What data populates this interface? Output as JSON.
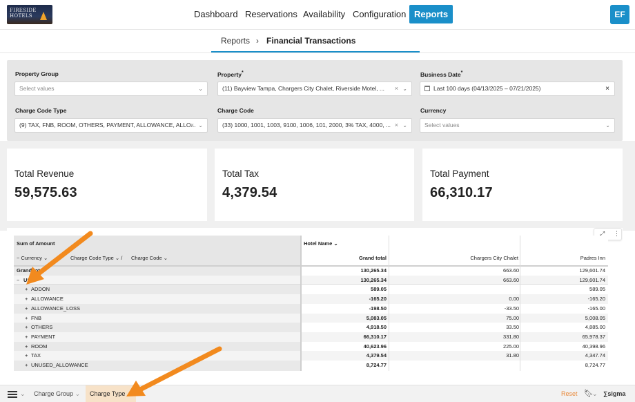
{
  "logo": {
    "text": "FIRESIDE\nHOTELS"
  },
  "nav": {
    "items": [
      "Dashboard",
      "Reservations",
      "Availability",
      "Configuration",
      "Reports"
    ],
    "active": "Reports",
    "avatar": "EF"
  },
  "breadcrumb": {
    "parent": "Reports",
    "separator": "›",
    "current": "Financial Transactions"
  },
  "filters": {
    "property_group": {
      "label": "Property Group",
      "value": "Select values",
      "required": false
    },
    "property": {
      "label": "Property",
      "value": "(11) Bayview Tampa, Chargers City Chalet, Riverside Motel, ...",
      "required_mark": "*"
    },
    "business_date": {
      "label": "Business Date",
      "value": "Last 100 days (04/13/2025 – 07/21/2025)",
      "required_mark": "*"
    },
    "charge_code_type": {
      "label": "Charge Code Type",
      "value": "(9) TAX, FNB, ROOM, OTHERS, PAYMENT, ALLOWANCE, ALLO..."
    },
    "charge_code": {
      "label": "Charge Code",
      "value": "(33) 1000, 1001, 1003, 9100, 1006, 101, 2000, 3% TAX, 4000, ..."
    },
    "currency": {
      "label": "Currency",
      "value": "Select values"
    }
  },
  "kpis": [
    {
      "label": "Total Revenue",
      "value": "59,575.63"
    },
    {
      "label": "Total Tax",
      "value": "4,379.54"
    },
    {
      "label": "Total Payment",
      "value": "66,310.17"
    }
  ],
  "pivot": {
    "title": "Sum of Amount",
    "column_header": "Hotel Name",
    "row_headers": [
      "Currency",
      "Charge Code Type",
      "Charge Code"
    ],
    "columns": [
      "Grand total",
      "Chargers City Chalet",
      "Padres Inn"
    ],
    "rows": [
      {
        "label": "Grand total",
        "level": 0,
        "prefix": "",
        "values": [
          "130,265.34",
          "663.60",
          "129,601.74"
        ]
      },
      {
        "label": "USD",
        "level": 0,
        "prefix": "−",
        "values": [
          "130,265.34",
          "663.60",
          "129,601.74"
        ]
      },
      {
        "label": "ADDON",
        "level": 1,
        "prefix": "+",
        "values": [
          "589.05",
          "",
          "589.05"
        ]
      },
      {
        "label": "ALLOWANCE",
        "level": 1,
        "prefix": "+",
        "values": [
          "-165.20",
          "0.00",
          "-165.20"
        ]
      },
      {
        "label": "ALLOWANCE_LOSS",
        "level": 1,
        "prefix": "+",
        "values": [
          "-198.50",
          "-33.50",
          "-165.00"
        ]
      },
      {
        "label": "FNB",
        "level": 1,
        "prefix": "+",
        "values": [
          "5,083.05",
          "75.00",
          "5,008.05"
        ]
      },
      {
        "label": "OTHERS",
        "level": 1,
        "prefix": "+",
        "values": [
          "4,918.50",
          "33.50",
          "4,885.00"
        ]
      },
      {
        "label": "PAYMENT",
        "level": 1,
        "prefix": "+",
        "values": [
          "66,310.17",
          "331.80",
          "65,978.37"
        ]
      },
      {
        "label": "ROOM",
        "level": 1,
        "prefix": "+",
        "values": [
          "40,623.96",
          "225.00",
          "40,398.96"
        ]
      },
      {
        "label": "TAX",
        "level": 1,
        "prefix": "+",
        "values": [
          "4,379.54",
          "31.80",
          "4,347.74"
        ]
      },
      {
        "label": "UNUSED_ALLOWANCE",
        "level": 1,
        "prefix": "+",
        "values": [
          "8,724.77",
          "",
          "8,724.77"
        ]
      }
    ]
  },
  "bottom": {
    "tabs": [
      "Charge Group",
      "Charge Type"
    ],
    "active_tab": "Charge Type",
    "reset": "Reset",
    "brand": "sigma"
  },
  "colors": {
    "accent": "#1a8fc9",
    "arrow": "#f28a1e",
    "reset": "#e8893a"
  }
}
